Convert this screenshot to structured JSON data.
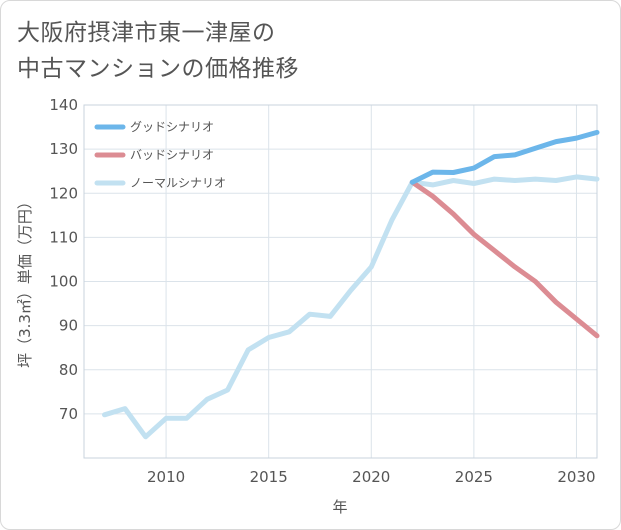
{
  "title": {
    "line1": "大阪府摂津市東一津屋の",
    "line2": "中古マンションの価格推移"
  },
  "chart_data": {
    "type": "line",
    "xlabel": "年",
    "ylabel": "坪（3.3㎡）単価（万円）",
    "xlim": [
      2006,
      2031
    ],
    "ylim": [
      60,
      140
    ],
    "x_ticks": [
      2010,
      2015,
      2020,
      2025,
      2030
    ],
    "y_ticks": [
      70,
      80,
      90,
      100,
      110,
      120,
      130,
      140
    ],
    "grid": true,
    "legend_position": "top-left",
    "series": [
      {
        "name": "グッドシナリオ",
        "color": "#6cb6ea",
        "x": [
          2022,
          2023,
          2024,
          2025,
          2026,
          2027,
          2028,
          2029,
          2030,
          2031
        ],
        "y": [
          122.5,
          124.8,
          124.7,
          125.7,
          128.3,
          128.7,
          130.2,
          131.7,
          132.5,
          133.8
        ]
      },
      {
        "name": "バッドシナリオ",
        "color": "#dc8c93",
        "x": [
          2022,
          2023,
          2024,
          2025,
          2026,
          2027,
          2028,
          2029,
          2030,
          2031
        ],
        "y": [
          122.5,
          119.3,
          115.3,
          110.7,
          107.0,
          103.3,
          100.0,
          95.3,
          91.5,
          87.7
        ]
      },
      {
        "name": "ノーマルシナリオ",
        "color": "#c2e1f1",
        "x": [
          2007,
          2008,
          2009,
          2010,
          2011,
          2012,
          2013,
          2014,
          2015,
          2016,
          2017,
          2018,
          2019,
          2020,
          2021,
          2022,
          2023,
          2024,
          2025,
          2026,
          2027,
          2028,
          2029,
          2030,
          2031
        ],
        "y": [
          69.8,
          71.2,
          64.8,
          69.0,
          69.0,
          73.3,
          75.4,
          84.5,
          87.3,
          88.6,
          92.6,
          92.1,
          98.0,
          103.3,
          113.9,
          122.5,
          121.9,
          122.9,
          122.2,
          123.2,
          122.9,
          123.2,
          122.9,
          123.7,
          123.2
        ]
      }
    ]
  }
}
